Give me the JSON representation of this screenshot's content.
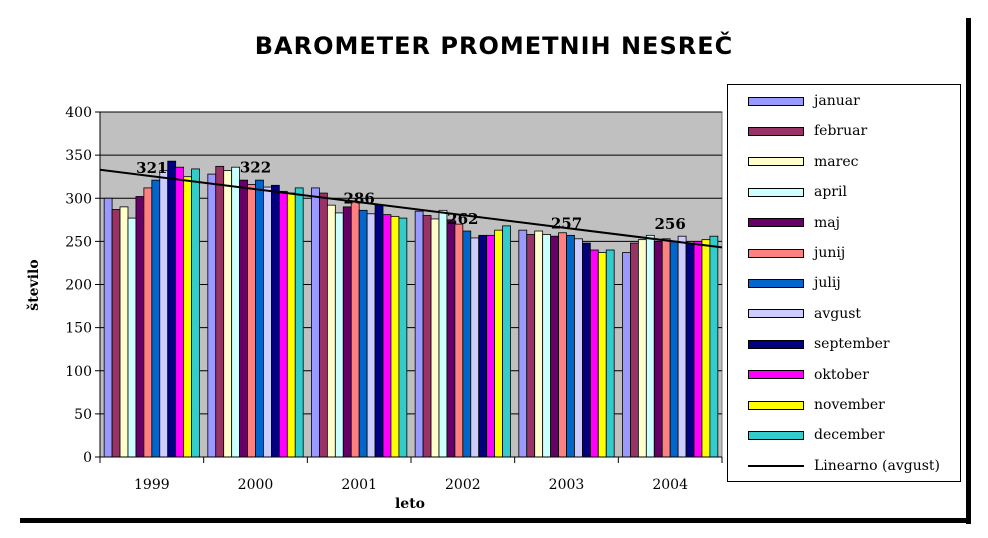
{
  "chart_data": {
    "type": "bar",
    "title": "BAROMETER PROMETNIH NESREČ",
    "xlabel": "leto",
    "ylabel": "število",
    "ylim": [
      0,
      400
    ],
    "yticks": [
      "0",
      "50",
      "100",
      "150",
      "200",
      "250",
      "300",
      "350",
      "400"
    ],
    "categories": [
      "1999",
      "2000",
      "2001",
      "2002",
      "2003",
      "2004"
    ],
    "grid": true,
    "legend_position": "right",
    "series": [
      {
        "name": "januar",
        "color": "#9999FF",
        "values": [
          300,
          328,
          312,
          285,
          263,
          237
        ]
      },
      {
        "name": "februar",
        "color": "#993366",
        "values": [
          287,
          337,
          306,
          280,
          258,
          248
        ]
      },
      {
        "name": "marec",
        "color": "#FFFFCC",
        "values": [
          290,
          332,
          292,
          276,
          262,
          252
        ]
      },
      {
        "name": "april",
        "color": "#CCFFFF",
        "values": [
          277,
          336,
          283,
          286,
          258,
          257
        ]
      },
      {
        "name": "maj",
        "color": "#660066",
        "values": [
          302,
          321,
          290,
          275,
          256,
          250
        ]
      },
      {
        "name": "junij",
        "color": "#FF8080",
        "values": [
          312,
          316,
          296,
          270,
          260,
          253
        ]
      },
      {
        "name": "julij",
        "color": "#0066CC",
        "values": [
          321,
          321,
          286,
          262,
          257,
          250
        ]
      },
      {
        "name": "avgust",
        "color": "#CCCCFF",
        "values": [
          332,
          313,
          282,
          254,
          253,
          256
        ]
      },
      {
        "name": "september",
        "color": "#000080",
        "values": [
          343,
          315,
          292,
          257,
          248,
          248
        ]
      },
      {
        "name": "oktober",
        "color": "#FF00FF",
        "values": [
          336,
          308,
          281,
          257,
          240,
          250
        ]
      },
      {
        "name": "november",
        "color": "#FFFF00",
        "values": [
          325,
          306,
          279,
          263,
          237,
          252
        ]
      },
      {
        "name": "december",
        "color": "#33CCCC",
        "values": [
          334,
          312,
          277,
          268,
          240,
          256
        ]
      }
    ],
    "data_labels": [
      {
        "category": "1999",
        "text": "321"
      },
      {
        "category": "2000",
        "text": "322"
      },
      {
        "category": "2001",
        "text": "286"
      },
      {
        "category": "2002",
        "text": "262"
      },
      {
        "category": "2003",
        "text": "257"
      },
      {
        "category": "2004",
        "text": "256"
      }
    ],
    "data_label_values": [
      321,
      322,
      286,
      262,
      257,
      256
    ],
    "trendline": {
      "name": "Linearno (avgust)",
      "start": 333,
      "end": 243
    }
  }
}
